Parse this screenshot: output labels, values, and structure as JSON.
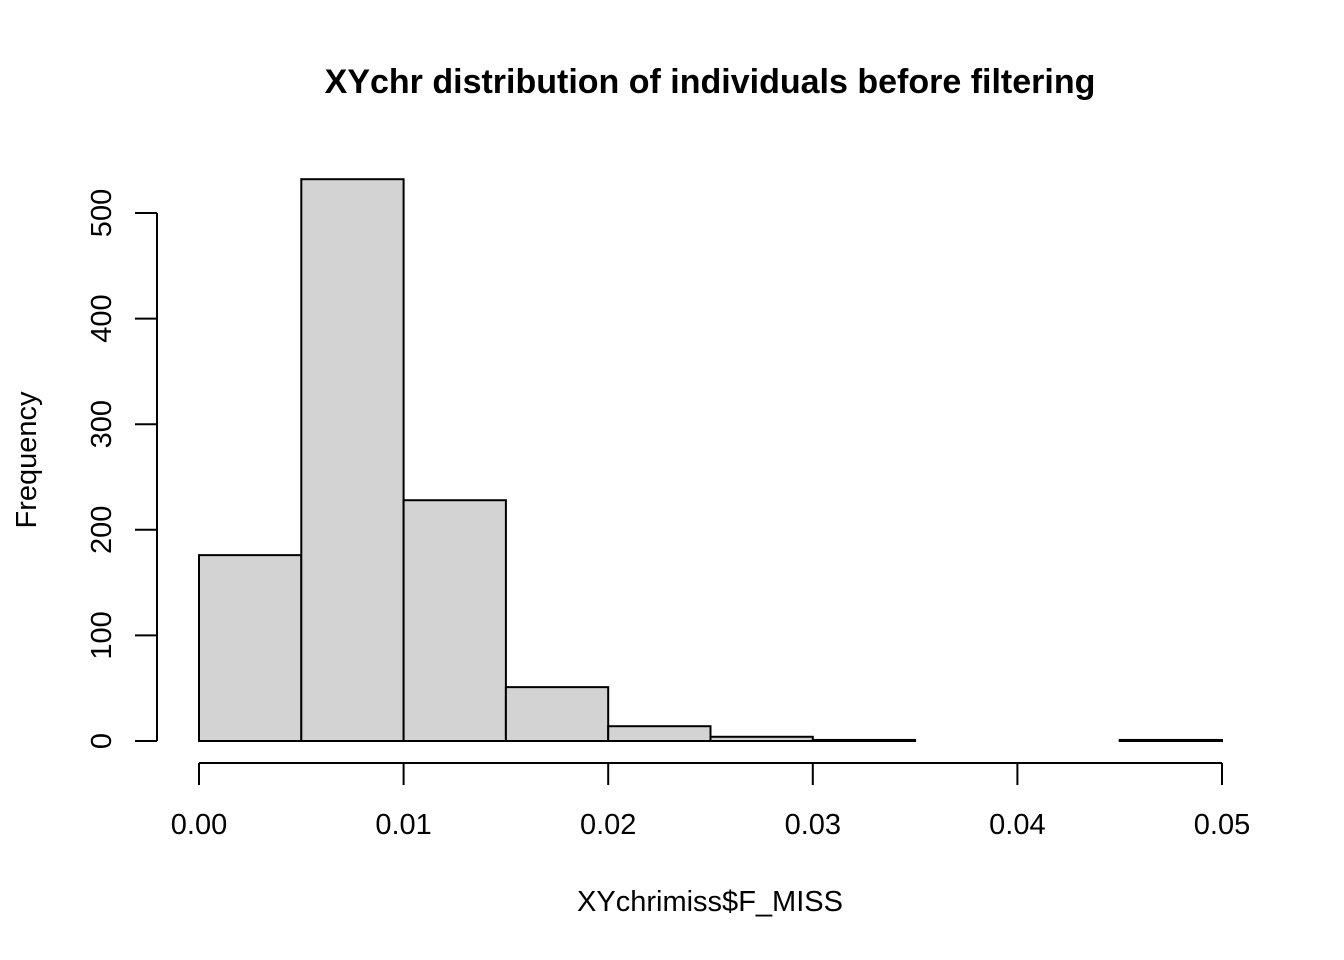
{
  "chart_data": {
    "type": "bar",
    "subtype": "histogram",
    "title": "XYchr distribution of individuals before filtering",
    "xlabel": "XYchrimiss$F_MISS",
    "ylabel": "Frequency",
    "bin_edges": [
      0.0,
      0.005,
      0.01,
      0.015,
      0.02,
      0.025,
      0.03,
      0.035,
      0.04,
      0.045,
      0.05
    ],
    "values": [
      176,
      532,
      228,
      51,
      14,
      4,
      1,
      0,
      0,
      1
    ],
    "xlim": [
      0.0,
      0.05
    ],
    "ylim": [
      0,
      500
    ],
    "x_ticks": [
      0.0,
      0.01,
      0.02,
      0.03,
      0.04,
      0.05
    ],
    "x_tick_labels": [
      "0.00",
      "0.01",
      "0.02",
      "0.03",
      "0.04",
      "0.05"
    ],
    "y_ticks": [
      0,
      100,
      200,
      300,
      400,
      500
    ],
    "y_tick_labels": [
      "0",
      "100",
      "200",
      "300",
      "400",
      "500"
    ],
    "bar_fill": "#d3d3d3",
    "bar_stroke": "#000000",
    "grid": false,
    "legend": "none"
  }
}
